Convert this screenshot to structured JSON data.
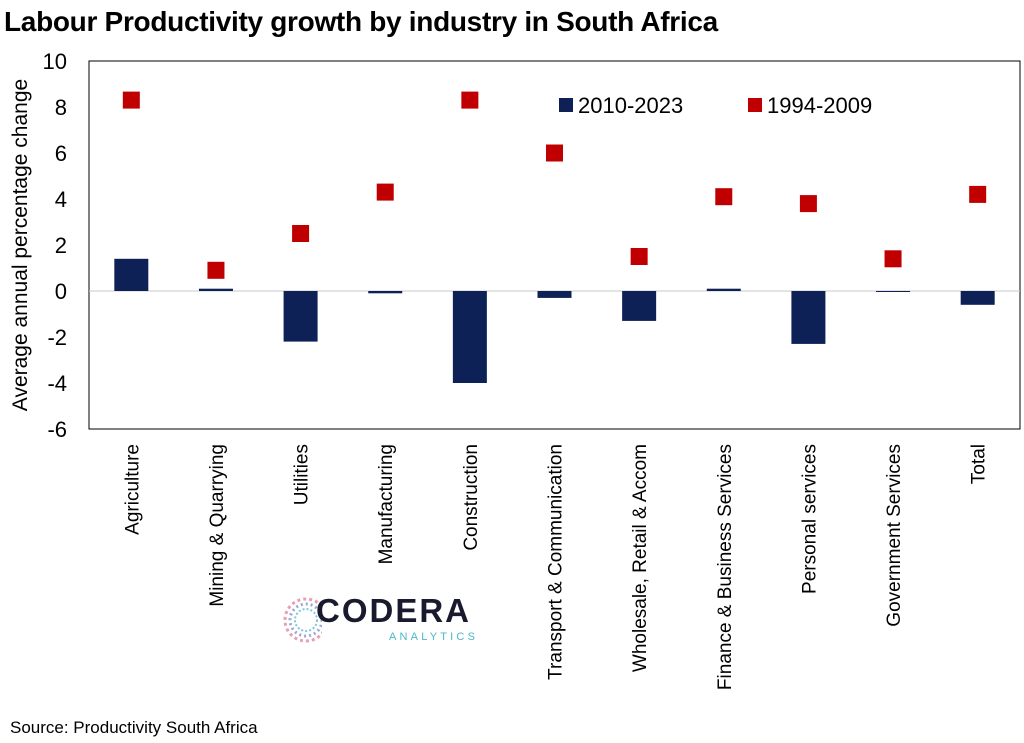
{
  "title": "Labour Productivity growth by industry in South Africa",
  "source": "Source: Productivity South Africa",
  "logo": {
    "name": "CODERA",
    "subtitle": "ANALYTICS"
  },
  "colors": {
    "bar": "#0d2157",
    "marker": "#c00000",
    "axis": "#000000"
  },
  "chart_data": {
    "type": "bar",
    "ylabel": "Average annual percentage change",
    "xlabel": "",
    "ylim": [
      -6,
      10
    ],
    "yticks": [
      10,
      8,
      6,
      4,
      2,
      0,
      -2,
      -4,
      -6
    ],
    "legend_position": "top-right",
    "categories": [
      "Agriculture",
      "Mining & Quarrying",
      "Utilities",
      "Manufacturing",
      "Construction",
      "Transport & Communication",
      "Wholesale, Retail & Accom",
      "Finance & Business Services",
      "Personal services",
      "Government Services",
      "Total"
    ],
    "series": [
      {
        "name": "2010-2023",
        "type": "bar",
        "values": [
          1.4,
          0.1,
          -2.2,
          -0.1,
          -4.0,
          -0.3,
          -1.3,
          0.1,
          -2.3,
          0.0,
          -0.6
        ]
      },
      {
        "name": "1994-2009",
        "type": "marker",
        "values": [
          8.3,
          0.9,
          2.5,
          4.3,
          8.3,
          6.0,
          1.5,
          4.1,
          3.8,
          1.4,
          4.2
        ]
      }
    ]
  }
}
